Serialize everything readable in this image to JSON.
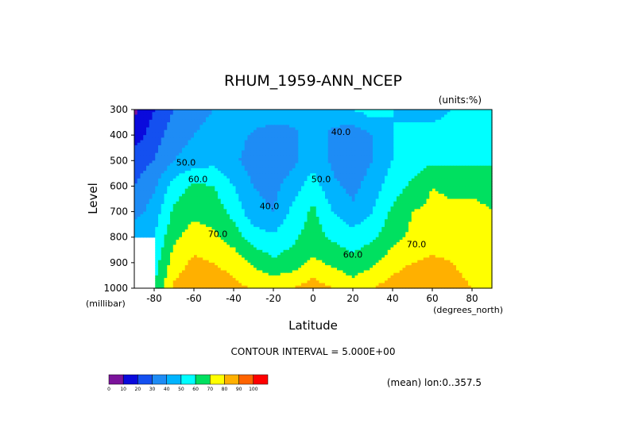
{
  "chart_data": {
    "type": "heatmap",
    "title": "RHUM_1959-ANN_NCEP",
    "units_note": "(units:%)",
    "xlabel": "Latitude",
    "x_units": "(degrees_north)",
    "ylabel": "Level",
    "y_units": "(millibar)",
    "contour_note": "CONTOUR INTERVAL = 5.000E+00",
    "footer_note": "(mean) lon:0..357.5",
    "xlim": [
      -90,
      90
    ],
    "ylim": [
      300,
      1000
    ],
    "y_inverted": true,
    "x_ticks": [
      -80,
      -60,
      -40,
      -20,
      0,
      20,
      40,
      60,
      80
    ],
    "x_tick_labels": [
      "-80",
      "-60",
      "-40",
      "-20",
      "0",
      "20",
      "40",
      "60",
      "80"
    ],
    "y_ticks": [
      300,
      400,
      500,
      600,
      700,
      800,
      900,
      1000
    ],
    "y_tick_labels": [
      "300",
      "400",
      "500",
      "600",
      "700",
      "800",
      "900",
      "1000"
    ],
    "contour_interval": 5,
    "contour_labels": [
      {
        "text": "50.0",
        "x": -64,
        "y": 520
      },
      {
        "text": "60.0",
        "x": -58,
        "y": 585
      },
      {
        "text": "70.0",
        "x": -48,
        "y": 800
      },
      {
        "text": "40.0",
        "x": -22,
        "y": 690
      },
      {
        "text": "50.0",
        "x": 4,
        "y": 585
      },
      {
        "text": "40.0",
        "x": 14,
        "y": 400
      },
      {
        "text": "60.0",
        "x": 20,
        "y": 880
      },
      {
        "text": "70.0",
        "x": 52,
        "y": 840
      }
    ],
    "colorbar": {
      "bounds": [
        0,
        10,
        20,
        30,
        40,
        50,
        60,
        70,
        80,
        90,
        100
      ],
      "labels": [
        "0",
        "10",
        "20",
        "30",
        "40",
        "50",
        "60",
        "70",
        "80",
        "90",
        "100"
      ],
      "colors": [
        "#7b139b",
        "#0a0adc",
        "#1450f0",
        "#1e8cf5",
        "#00b4ff",
        "#00ffff",
        "#00e060",
        "#ffff00",
        "#ffb000",
        "#ff6400",
        "#ff0000"
      ]
    },
    "grid": {
      "lats": [
        -90,
        -80,
        -70,
        -60,
        -50,
        -40,
        -30,
        -20,
        -10,
        0,
        10,
        20,
        30,
        40,
        50,
        60,
        70,
        80,
        90
      ],
      "levels": [
        300,
        400,
        500,
        600,
        700,
        800,
        900,
        1000
      ],
      "values": [
        [
          8,
          20,
          30,
          35,
          40,
          45,
          50,
          50,
          45,
          40,
          45,
          50,
          55,
          50,
          45,
          45,
          50,
          52,
          50
        ],
        [
          15,
          25,
          35,
          40,
          45,
          45,
          38,
          32,
          38,
          45,
          38,
          33,
          40,
          50,
          55,
          55,
          55,
          55,
          55
        ],
        [
          25,
          30,
          40,
          45,
          47,
          42,
          35,
          32,
          38,
          47,
          38,
          33,
          40,
          50,
          55,
          58,
          58,
          58,
          58
        ],
        [
          30,
          38,
          55,
          62,
          60,
          50,
          40,
          37,
          45,
          55,
          42,
          37,
          45,
          55,
          62,
          70,
          68,
          68,
          68
        ],
        [
          35,
          45,
          62,
          67,
          65,
          57,
          43,
          40,
          53,
          62,
          50,
          42,
          50,
          62,
          70,
          72,
          72,
          72,
          70
        ],
        [
          null,
          50,
          68,
          75,
          72,
          65,
          55,
          52,
          58,
          65,
          58,
          55,
          58,
          67,
          72,
          75,
          75,
          73,
          72
        ],
        [
          null,
          55,
          75,
          82,
          80,
          77,
          68,
          62,
          65,
          72,
          68,
          63,
          68,
          75,
          80,
          82,
          80,
          75,
          72
        ],
        [
          null,
          60,
          82,
          88,
          85,
          82,
          80,
          78,
          80,
          85,
          80,
          75,
          80,
          85,
          90,
          88,
          85,
          80,
          75
        ]
      ]
    }
  }
}
